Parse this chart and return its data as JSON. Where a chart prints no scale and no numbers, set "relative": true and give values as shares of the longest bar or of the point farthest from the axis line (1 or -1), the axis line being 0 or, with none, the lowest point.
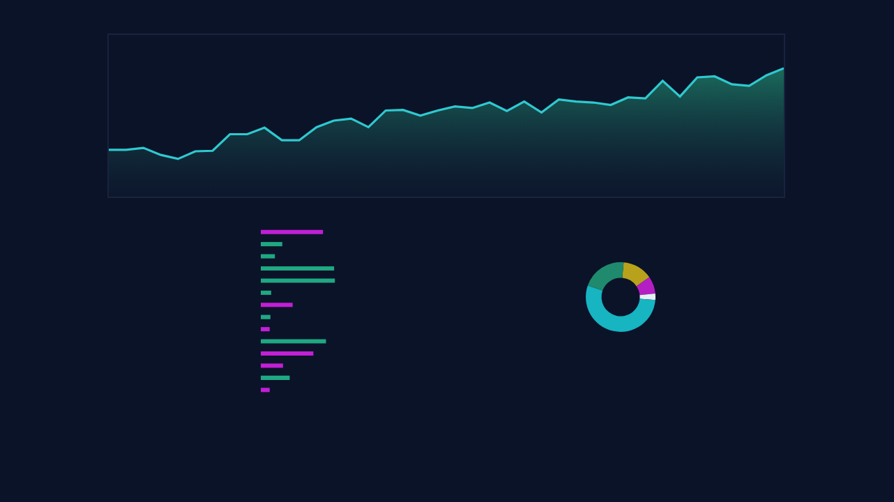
{
  "chart_data": [
    {
      "type": "area",
      "relative": true,
      "categories": [
        null,
        null,
        null,
        null,
        null,
        null,
        null,
        null,
        null,
        null,
        null,
        null,
        null,
        null,
        null,
        null,
        null,
        null,
        null,
        null,
        null,
        null,
        null,
        null,
        null,
        null,
        null,
        null,
        null,
        null,
        null,
        null,
        null,
        null,
        null,
        null,
        null,
        null,
        null,
        null
      ],
      "series": [
        {
          "color": "#2fc9d0",
          "values": [
            0.365,
            0.365,
            0.38,
            0.325,
            0.294,
            0.353,
            0.357,
            0.486,
            0.486,
            0.537,
            0.439,
            0.439,
            0.541,
            0.592,
            0.608,
            0.541,
            0.671,
            0.675,
            0.631,
            0.671,
            0.702,
            0.69,
            0.733,
            0.667,
            0.741,
            0.655,
            0.757,
            0.741,
            0.733,
            0.714,
            0.773,
            0.765,
            0.902,
            0.78,
            0.929,
            0.937,
            0.875,
            0.863,
            0.945,
            1
          ]
        }
      ]
    },
    {
      "type": "bar",
      "orientation": "horizontal",
      "relative": true,
      "categories": [
        null,
        null,
        null,
        null,
        null,
        null,
        null,
        null,
        null,
        null,
        null,
        null,
        null,
        null
      ],
      "values": [
        0.84,
        0.29,
        0.19,
        0.99,
        1,
        0.14,
        0.43,
        0.13,
        0.12,
        0.88,
        0.71,
        0.3,
        0.39,
        0.12
      ],
      "colors": [
        "#c21fd6",
        "#1fa882",
        "#1fa882",
        "#1fa882",
        "#1fa882",
        "#1fa882",
        "#c21fd6",
        "#1fa882",
        "#c21fd6",
        "#1fa882",
        "#c21fd6",
        "#c21fd6",
        "#1fa882",
        "#c21fd6"
      ]
    },
    {
      "type": "donut",
      "categories": [
        null,
        null,
        null,
        null,
        null
      ],
      "values": [
        14,
        8,
        3,
        54,
        21
      ],
      "colors": [
        "#b8a21c",
        "#b41fc4",
        "#e6eef2",
        "#17b4c2",
        "#1f8a6e"
      ]
    }
  ]
}
